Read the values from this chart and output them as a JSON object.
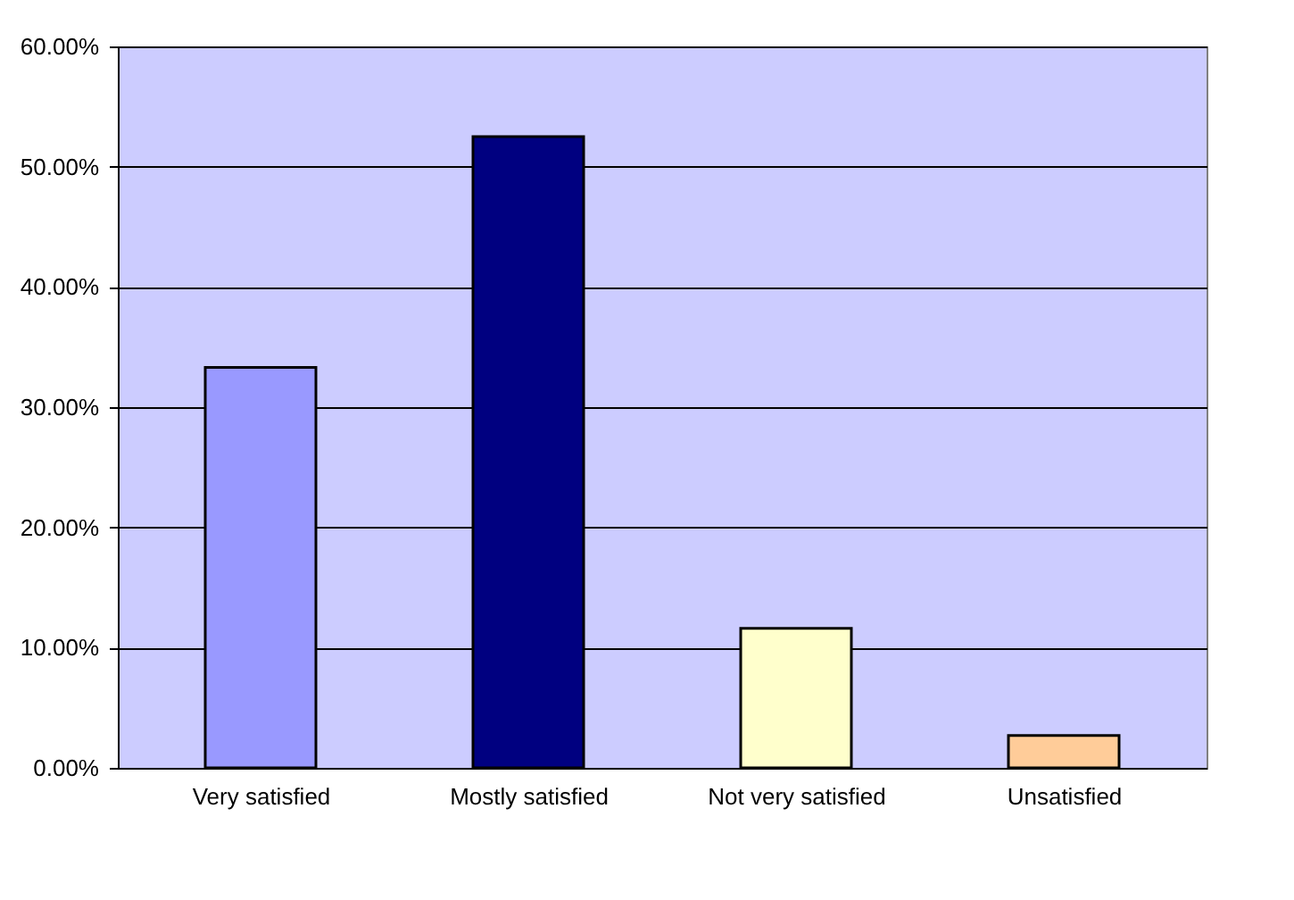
{
  "chart_data": {
    "type": "bar",
    "categories": [
      "Very satisfied",
      "Mostly satisfied",
      "Not very satisfied",
      "Unsatisfied"
    ],
    "values": [
      33.3,
      52.5,
      11.6,
      2.7
    ],
    "colors": [
      "#9999ff",
      "#000080",
      "#ffffcc",
      "#ffcc99"
    ],
    "ylim": [
      0,
      60
    ],
    "yticks": [
      {
        "value": 0,
        "label": "0.00%"
      },
      {
        "value": 10,
        "label": "10.00%"
      },
      {
        "value": 20,
        "label": "20.00%"
      },
      {
        "value": 30,
        "label": "30.00%"
      },
      {
        "value": 40,
        "label": "40.00%"
      },
      {
        "value": 50,
        "label": "50.00%"
      },
      {
        "value": 60,
        "label": "60.00%"
      }
    ],
    "grid": "y"
  }
}
